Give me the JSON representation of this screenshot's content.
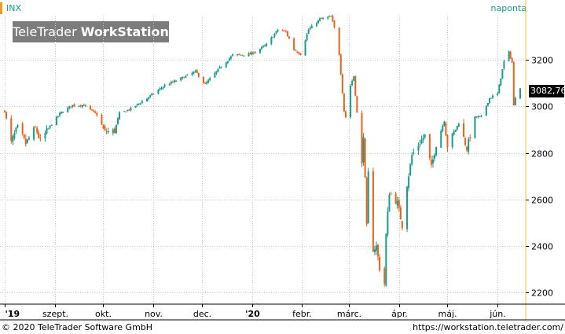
{
  "header": {
    "symbol": "INX",
    "period": "naponta",
    "watermark_brand": "TeleTrader",
    "watermark_product": "WorkStation"
  },
  "footer": {
    "copyright": "© 2020 TeleTrader Software GmbH",
    "url": "https://workstation.teletrader.com/"
  },
  "last_price_label": "3082,76",
  "colors": {
    "up": "#199a8d",
    "down": "#e8621a",
    "grid": "#c8c8c8",
    "axis": "#f2c040",
    "accent": "#f29c1a"
  },
  "chart_data": {
    "type": "candlestick",
    "title": "",
    "xlabel": "",
    "ylabel": "",
    "ylim": [
      2150,
      3390
    ],
    "y_ticks": [
      2200,
      2400,
      2600,
      2800,
      3000,
      3200
    ],
    "y_tick_labels": [
      "2200",
      "2400",
      "2600",
      "2800",
      "3000",
      "3200"
    ],
    "x_tick_labels": [
      "'19",
      "szept.",
      "okt.",
      "nov.",
      "dec.",
      "'20",
      "febr.",
      "márc.",
      "ápr.",
      "máj.",
      "jún."
    ],
    "x_tick_dates": [
      "2019-08-01",
      "2019-09-01",
      "2019-10-01",
      "2019-11-01",
      "2019-12-01",
      "2020-01-01",
      "2020-02-01",
      "2020-03-01",
      "2020-04-01",
      "2020-05-01",
      "2020-06-01"
    ],
    "x_range": [
      "2019-07-31",
      "2020-06-15"
    ],
    "last_value": 3082.76,
    "anchors": [
      [
        "2019-08-01",
        2980
      ],
      [
        "2019-08-05",
        2845
      ],
      [
        "2019-08-09",
        2915
      ],
      [
        "2019-08-14",
        2840
      ],
      [
        "2019-08-20",
        2910
      ],
      [
        "2019-08-23",
        2850
      ],
      [
        "2019-08-30",
        2926
      ],
      [
        "2019-09-05",
        2975
      ],
      [
        "2019-09-12",
        3005
      ],
      [
        "2019-09-19",
        3005
      ],
      [
        "2019-09-27",
        2965
      ],
      [
        "2019-10-02",
        2890
      ],
      [
        "2019-10-08",
        2895
      ],
      [
        "2019-10-11",
        2970
      ],
      [
        "2019-10-18",
        2990
      ],
      [
        "2019-10-28",
        3035
      ],
      [
        "2019-11-08",
        3090
      ],
      [
        "2019-11-18",
        3120
      ],
      [
        "2019-11-27",
        3150
      ],
      [
        "2019-12-03",
        3095
      ],
      [
        "2019-12-12",
        3165
      ],
      [
        "2019-12-20",
        3220
      ],
      [
        "2019-12-31",
        3225
      ],
      [
        "2020-01-03",
        3235
      ],
      [
        "2020-01-10",
        3265
      ],
      [
        "2020-01-17",
        3330
      ],
      [
        "2020-01-22",
        3320
      ],
      [
        "2020-01-27",
        3245
      ],
      [
        "2020-01-31",
        3225
      ],
      [
        "2020-02-05",
        3330
      ],
      [
        "2020-02-12",
        3375
      ],
      [
        "2020-02-19",
        3386
      ],
      [
        "2020-02-21",
        3337
      ],
      [
        "2020-02-24",
        3225
      ],
      [
        "2020-02-27",
        2980
      ],
      [
        "2020-02-28",
        2954
      ],
      [
        "2020-03-02",
        3090
      ],
      [
        "2020-03-04",
        3130
      ],
      [
        "2020-03-06",
        2972
      ],
      [
        "2020-03-09",
        2747
      ],
      [
        "2020-03-10",
        2882
      ],
      [
        "2020-03-12",
        2480
      ],
      [
        "2020-03-13",
        2711
      ],
      [
        "2020-03-16",
        2386
      ],
      [
        "2020-03-18",
        2398
      ],
      [
        "2020-03-20",
        2305
      ],
      [
        "2020-03-23",
        2237
      ],
      [
        "2020-03-24",
        2447
      ],
      [
        "2020-03-26",
        2630
      ],
      [
        "2020-03-31",
        2585
      ],
      [
        "2020-04-03",
        2488
      ],
      [
        "2020-04-06",
        2664
      ],
      [
        "2020-04-09",
        2790
      ],
      [
        "2020-04-14",
        2846
      ],
      [
        "2020-04-17",
        2875
      ],
      [
        "2020-04-21",
        2737
      ],
      [
        "2020-04-24",
        2837
      ],
      [
        "2020-04-29",
        2939
      ],
      [
        "2020-05-01",
        2830
      ],
      [
        "2020-05-08",
        2930
      ],
      [
        "2020-05-13",
        2820
      ],
      [
        "2020-05-18",
        2953
      ],
      [
        "2020-05-22",
        2955
      ],
      [
        "2020-05-27",
        3036
      ],
      [
        "2020-06-01",
        3055
      ],
      [
        "2020-06-05",
        3193
      ],
      [
        "2020-06-08",
        3232
      ],
      [
        "2020-06-10",
        3190
      ],
      [
        "2020-06-11",
        3002
      ],
      [
        "2020-06-12",
        3041
      ],
      [
        "2020-06-15",
        3082.76
      ]
    ]
  }
}
